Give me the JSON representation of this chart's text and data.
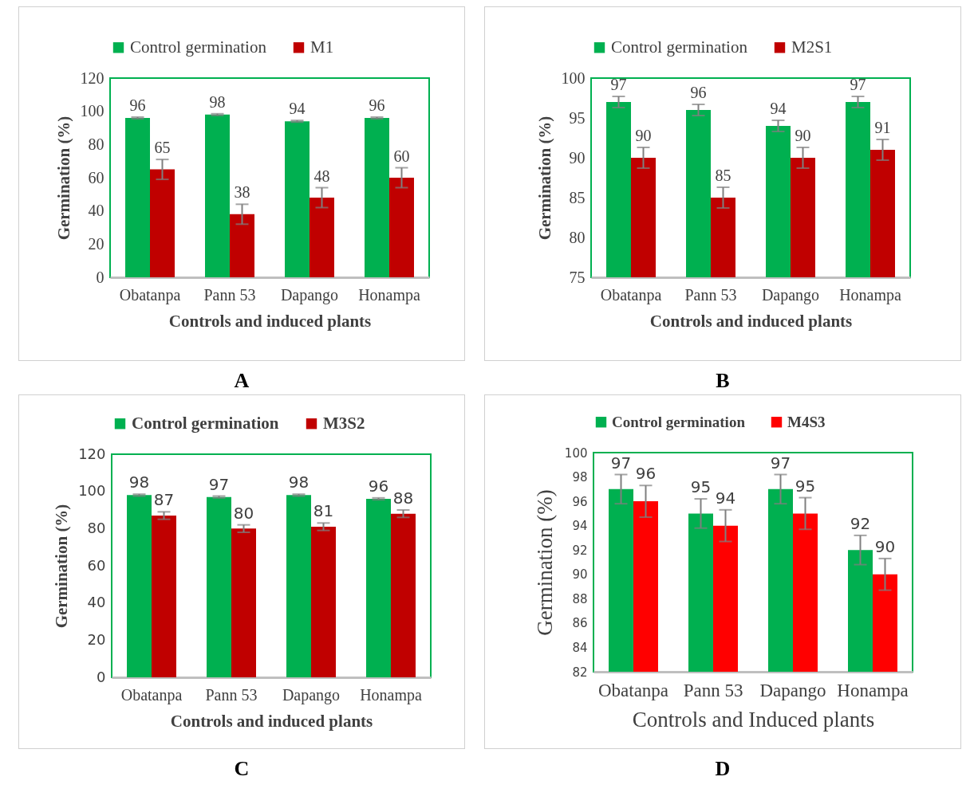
{
  "chart_data": [
    {
      "type": "bar",
      "xlabel": "Controls and induced plants",
      "ylabel": "Germination (%)",
      "categories": [
        "Obatanpa",
        "Pann 53",
        "Dapango",
        "Honampa"
      ],
      "series": [
        {
          "name": "Control germination",
          "color": "#00b050",
          "values": [
            96,
            98,
            94,
            96
          ],
          "errors": [
            0.5,
            0.5,
            0.5,
            0.5
          ]
        },
        {
          "name": "M1",
          "color": "#c00000",
          "values": [
            65,
            38,
            48,
            60
          ],
          "errors": [
            6,
            6,
            6,
            6
          ]
        }
      ],
      "ylim": [
        0,
        120
      ],
      "yticks": [
        0,
        20,
        40,
        60,
        80,
        100,
        120
      ],
      "grid": false,
      "legend": "top",
      "data_labels": true,
      "annotations": [
        "A"
      ]
    },
    {
      "type": "bar",
      "xlabel": "Controls and induced plants",
      "ylabel": "Germination (%)",
      "categories": [
        "Obatanpa",
        "Pann 53",
        "Dapango",
        "Honampa"
      ],
      "series": [
        {
          "name": "Control germination",
          "color": "#00b050",
          "values": [
            97,
            96,
            94,
            97
          ],
          "errors": [
            0.7,
            0.7,
            0.7,
            0.7
          ]
        },
        {
          "name": "M2S1",
          "color": "#c00000",
          "values": [
            90,
            85,
            90,
            91
          ],
          "errors": [
            1.3,
            1.3,
            1.3,
            1.3
          ]
        }
      ],
      "ylim": [
        75,
        100
      ],
      "yticks": [
        75,
        80,
        85,
        90,
        95,
        100
      ],
      "grid": false,
      "legend": "top",
      "data_labels": true,
      "annotations": [
        "B"
      ]
    },
    {
      "type": "bar",
      "xlabel": "Controls and induced plants",
      "ylabel": "Germination (%)",
      "categories": [
        "Obatanpa",
        "Pann 53",
        "Dapango",
        "Honampa"
      ],
      "series": [
        {
          "name": "Control germination",
          "color": "#00b050",
          "values": [
            98,
            97,
            98,
            96
          ],
          "errors": [
            0.5,
            0.5,
            0.5,
            0.5
          ]
        },
        {
          "name": "M3S2",
          "color": "#c00000",
          "values": [
            87,
            80,
            81,
            88
          ],
          "errors": [
            2,
            2,
            2,
            2
          ]
        }
      ],
      "ylim": [
        0,
        120
      ],
      "yticks": [
        0,
        20,
        40,
        60,
        80,
        100,
        120
      ],
      "grid": false,
      "legend": "top",
      "data_labels": true,
      "annotations": [
        "C"
      ]
    },
    {
      "type": "bar",
      "xlabel": "Controls and Induced plants",
      "ylabel": "Germination  (%)",
      "categories": [
        "Obatanpa",
        "Pann 53",
        "Dapango",
        "Honampa"
      ],
      "series": [
        {
          "name": "Control germination",
          "color": "#00b050",
          "values": [
            97,
            95,
            97,
            92
          ],
          "errors": [
            1.2,
            1.2,
            1.2,
            1.2
          ]
        },
        {
          "name": "M4S3",
          "color": "#ff0000",
          "values": [
            96,
            94,
            95,
            90
          ],
          "errors": [
            1.3,
            1.3,
            1.3,
            1.3
          ]
        }
      ],
      "ylim": [
        82,
        100
      ],
      "yticks": [
        82,
        84,
        86,
        88,
        90,
        92,
        94,
        96,
        98,
        100
      ],
      "grid": false,
      "legend": "top",
      "data_labels": true,
      "annotations": [
        "D"
      ]
    }
  ]
}
